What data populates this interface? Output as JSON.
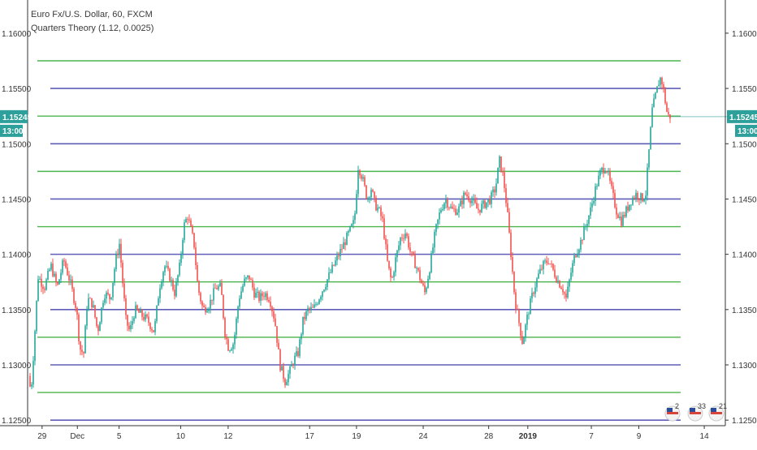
{
  "chart_data": {
    "type": "candlestick",
    "title": "Euro Fx/U.S. Dollar, 60, FXCM",
    "indicator": "Quarters Theory (1.12, 0.0025)",
    "ylim": [
      1.1245,
      1.163
    ],
    "y_ticks": [
      "1.16000",
      "1.15500",
      "1.15000",
      "1.14500",
      "1.14000",
      "1.13500",
      "1.13000",
      "1.12500"
    ],
    "y_tick_values": [
      1.16,
      1.155,
      1.15,
      1.145,
      1.14,
      1.135,
      1.13,
      1.125
    ],
    "x_ticks": [
      {
        "label": "29",
        "x": 0.02
      },
      {
        "label": "Dec",
        "x": 0.075
      },
      {
        "label": "5",
        "x": 0.14
      },
      {
        "label": "10",
        "x": 0.236
      },
      {
        "label": "12",
        "x": 0.31
      },
      {
        "label": "17",
        "x": 0.437
      },
      {
        "label": "19",
        "x": 0.51
      },
      {
        "label": "24",
        "x": 0.614
      },
      {
        "label": "28",
        "x": 0.716
      },
      {
        "label": "2019",
        "x": 0.777,
        "bold": true
      },
      {
        "label": "7",
        "x": 0.876
      },
      {
        "label": "9",
        "x": 0.95
      },
      {
        "label": "14",
        "x": 1.052
      }
    ],
    "last_price": {
      "value": 1.15245,
      "label": "1.15245",
      "time_label": "13:00",
      "color": "#2ea09b"
    },
    "level_lines": {
      "whole": [
        1.155,
        1.15,
        1.145,
        1.14,
        1.135,
        1.13,
        1.125
      ],
      "whole_color": "#5f5fba",
      "quarter": [
        1.1575,
        1.1525,
        1.1475,
        1.1425,
        1.1375,
        1.1325,
        1.1275
      ],
      "quarter_color": "#4cb44c"
    },
    "candle_colors": {
      "up": "#26a69a",
      "down": "#ef5350"
    },
    "price_path": [
      [
        0.0,
        1.129
      ],
      [
        0.004,
        1.1275
      ],
      [
        0.009,
        1.132
      ],
      [
        0.015,
        1.138
      ],
      [
        0.025,
        1.137
      ],
      [
        0.035,
        1.139
      ],
      [
        0.045,
        1.137
      ],
      [
        0.055,
        1.1395
      ],
      [
        0.065,
        1.1375
      ],
      [
        0.075,
        1.135
      ],
      [
        0.08,
        1.1315
      ],
      [
        0.086,
        1.131
      ],
      [
        0.092,
        1.136
      ],
      [
        0.1,
        1.1355
      ],
      [
        0.108,
        1.133
      ],
      [
        0.118,
        1.1365
      ],
      [
        0.128,
        1.136
      ],
      [
        0.136,
        1.1395
      ],
      [
        0.142,
        1.141
      ],
      [
        0.146,
        1.138
      ],
      [
        0.152,
        1.134
      ],
      [
        0.158,
        1.133
      ],
      [
        0.166,
        1.135
      ],
      [
        0.176,
        1.1345
      ],
      [
        0.186,
        1.134
      ],
      [
        0.196,
        1.133
      ],
      [
        0.204,
        1.137
      ],
      [
        0.212,
        1.139
      ],
      [
        0.22,
        1.138
      ],
      [
        0.228,
        1.1365
      ],
      [
        0.236,
        1.139
      ],
      [
        0.242,
        1.1425
      ],
      [
        0.248,
        1.1435
      ],
      [
        0.254,
        1.142
      ],
      [
        0.258,
        1.141
      ],
      [
        0.264,
        1.137
      ],
      [
        0.272,
        1.135
      ],
      [
        0.282,
        1.1355
      ],
      [
        0.292,
        1.137
      ],
      [
        0.3,
        1.137
      ],
      [
        0.306,
        1.133
      ],
      [
        0.312,
        1.1315
      ],
      [
        0.32,
        1.132
      ],
      [
        0.328,
        1.136
      ],
      [
        0.336,
        1.1375
      ],
      [
        0.344,
        1.138
      ],
      [
        0.352,
        1.1365
      ],
      [
        0.36,
        1.136
      ],
      [
        0.368,
        1.1365
      ],
      [
        0.376,
        1.136
      ],
      [
        0.384,
        1.134
      ],
      [
        0.392,
        1.13
      ],
      [
        0.4,
        1.1285
      ],
      [
        0.408,
        1.1295
      ],
      [
        0.414,
        1.1305
      ],
      [
        0.42,
        1.131
      ],
      [
        0.428,
        1.134
      ],
      [
        0.436,
        1.135
      ],
      [
        0.444,
        1.135
      ],
      [
        0.452,
        1.136
      ],
      [
        0.46,
        1.137
      ],
      [
        0.468,
        1.138
      ],
      [
        0.476,
        1.139
      ],
      [
        0.484,
        1.14
      ],
      [
        0.492,
        1.141
      ],
      [
        0.5,
        1.142
      ],
      [
        0.508,
        1.143
      ],
      [
        0.514,
        1.148
      ],
      [
        0.52,
        1.147
      ],
      [
        0.528,
        1.145
      ],
      [
        0.534,
        1.146
      ],
      [
        0.54,
        1.1445
      ],
      [
        0.546,
        1.144
      ],
      [
        0.552,
        1.143
      ],
      [
        0.56,
        1.139
      ],
      [
        0.566,
        1.1375
      ],
      [
        0.572,
        1.1395
      ],
      [
        0.58,
        1.1415
      ],
      [
        0.588,
        1.142
      ],
      [
        0.596,
        1.14
      ],
      [
        0.604,
        1.139
      ],
      [
        0.612,
        1.1375
      ],
      [
        0.618,
        1.1365
      ],
      [
        0.626,
        1.139
      ],
      [
        0.634,
        1.142
      ],
      [
        0.642,
        1.144
      ],
      [
        0.65,
        1.145
      ],
      [
        0.66,
        1.144
      ],
      [
        0.67,
        1.144
      ],
      [
        0.68,
        1.1455
      ],
      [
        0.69,
        1.145
      ],
      [
        0.7,
        1.144
      ],
      [
        0.71,
        1.1445
      ],
      [
        0.72,
        1.145
      ],
      [
        0.728,
        1.146
      ],
      [
        0.734,
        1.1485
      ],
      [
        0.74,
        1.147
      ],
      [
        0.746,
        1.144
      ],
      [
        0.752,
        1.14
      ],
      [
        0.758,
        1.136
      ],
      [
        0.764,
        1.134
      ],
      [
        0.77,
        1.132
      ],
      [
        0.778,
        1.1345
      ],
      [
        0.786,
        1.1365
      ],
      [
        0.794,
        1.138
      ],
      [
        0.802,
        1.139
      ],
      [
        0.81,
        1.1395
      ],
      [
        0.818,
        1.1385
      ],
      [
        0.826,
        1.1375
      ],
      [
        0.832,
        1.137
      ],
      [
        0.838,
        1.136
      ],
      [
        0.846,
        1.1385
      ],
      [
        0.852,
        1.14
      ],
      [
        0.86,
        1.141
      ],
      [
        0.868,
        1.1425
      ],
      [
        0.876,
        1.144
      ],
      [
        0.884,
        1.146
      ],
      [
        0.892,
        1.1475
      ],
      [
        0.9,
        1.148
      ],
      [
        0.908,
        1.146
      ],
      [
        0.916,
        1.144
      ],
      [
        0.924,
        1.143
      ],
      [
        0.932,
        1.144
      ],
      [
        0.94,
        1.145
      ],
      [
        0.948,
        1.1455
      ],
      [
        0.956,
        1.145
      ],
      [
        0.962,
        1.1455
      ],
      [
        0.968,
        1.15
      ],
      [
        0.972,
        1.153
      ],
      [
        0.976,
        1.154
      ],
      [
        0.98,
        1.155
      ],
      [
        0.984,
        1.156
      ],
      [
        0.988,
        1.1555
      ],
      [
        0.992,
        1.154
      ],
      [
        0.996,
        1.1525
      ],
      [
        1.0,
        1.1525
      ]
    ],
    "badges": [
      "2",
      "33",
      "21"
    ]
  }
}
